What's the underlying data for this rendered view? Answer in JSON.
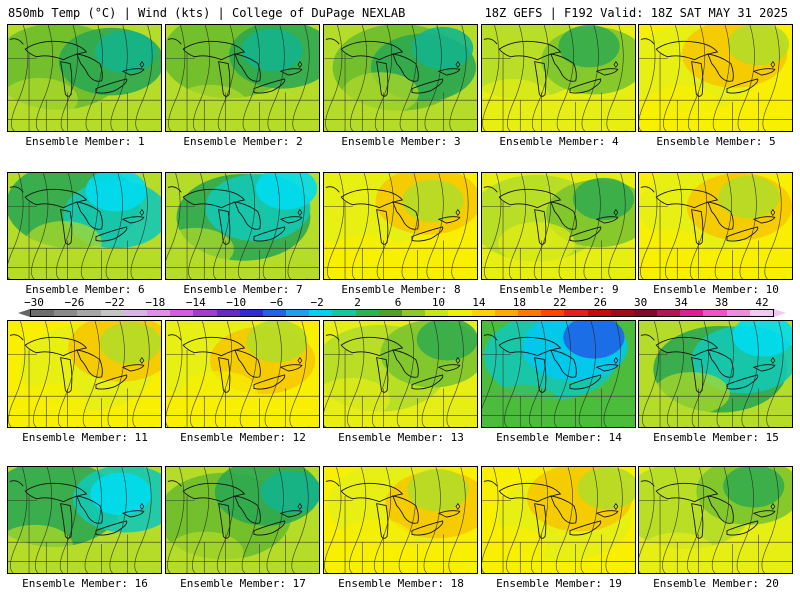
{
  "header": {
    "left": "850mb Temp (°C) | Wind (kts) | College of DuPage NEXLAB",
    "right": "18Z GEFS | F192 Valid: 18Z SAT MAY 31 2025"
  },
  "panels": [
    {
      "label": "Ensemble Member: 1",
      "tone": "green"
    },
    {
      "label": "Ensemble Member: 2",
      "tone": "green"
    },
    {
      "label": "Ensemble Member: 3",
      "tone": "green"
    },
    {
      "label": "Ensemble Member: 4",
      "tone": "yellowgreen"
    },
    {
      "label": "Ensemble Member: 5",
      "tone": "yellow"
    },
    {
      "label": "Ensemble Member: 6",
      "tone": "cyan"
    },
    {
      "label": "Ensemble Member: 7",
      "tone": "cyan"
    },
    {
      "label": "Ensemble Member: 8",
      "tone": "yellow"
    },
    {
      "label": "Ensemble Member: 9",
      "tone": "yellowgreen"
    },
    {
      "label": "Ensemble Member: 10",
      "tone": "yellow"
    },
    {
      "label": "Ensemble Member: 11",
      "tone": "yellow"
    },
    {
      "label": "Ensemble Member: 12",
      "tone": "yellow"
    },
    {
      "label": "Ensemble Member: 13",
      "tone": "yellowgreen"
    },
    {
      "label": "Ensemble Member: 14",
      "tone": "blue"
    },
    {
      "label": "Ensemble Member: 15",
      "tone": "cyan"
    },
    {
      "label": "Ensemble Member: 16",
      "tone": "cyan"
    },
    {
      "label": "Ensemble Member: 17",
      "tone": "green"
    },
    {
      "label": "Ensemble Member: 18",
      "tone": "yellow"
    },
    {
      "label": "Ensemble Member: 19",
      "tone": "yellow"
    },
    {
      "label": "Ensemble Member: 20",
      "tone": "yellowgreen"
    }
  ],
  "colorbar": {
    "tick_labels": [
      "−30",
      "−26",
      "−22",
      "−18",
      "−14",
      "−10",
      "−6",
      "−2",
      "2",
      "6",
      "10",
      "14",
      "18",
      "22",
      "26",
      "30",
      "34",
      "38",
      "42"
    ],
    "colors": [
      "#6e6e6e",
      "#8a8a8a",
      "#a6a6a6",
      "#c4c4c4",
      "#d9b3e6",
      "#e28ee8",
      "#d55ce0",
      "#a43ad0",
      "#6a28c8",
      "#2c2cd2",
      "#1e64e6",
      "#1ea0f0",
      "#00d2f0",
      "#14c8a0",
      "#28b450",
      "#50a028",
      "#8cc828",
      "#c8e614",
      "#f0f000",
      "#ffd200",
      "#ffaa00",
      "#ff7800",
      "#ff4600",
      "#e61e1e",
      "#c80a0a",
      "#a00a14",
      "#820a28",
      "#b4145a",
      "#dc1e96",
      "#f050c8",
      "#f08cdc",
      "#f4c8f4"
    ],
    "left_arrow_color": "#666666",
    "right_arrow_color": "#f4c8f4"
  },
  "tones": {
    "green": [
      "#b4dc28",
      "#6cbc2c",
      "#2ca850",
      "#14b48c"
    ],
    "yellowgreen": [
      "#e6ee14",
      "#b4dc28",
      "#7cc42c",
      "#34ac4c"
    ],
    "yellow": [
      "#f8f000",
      "#e6ee14",
      "#f6c800",
      "#b4dc28"
    ],
    "cyan": [
      "#b4dc28",
      "#2ca850",
      "#14c8b4",
      "#00dcf0"
    ],
    "blue": [
      "#4cbc3c",
      "#14c8b4",
      "#00c8f0",
      "#1e64e6"
    ]
  }
}
